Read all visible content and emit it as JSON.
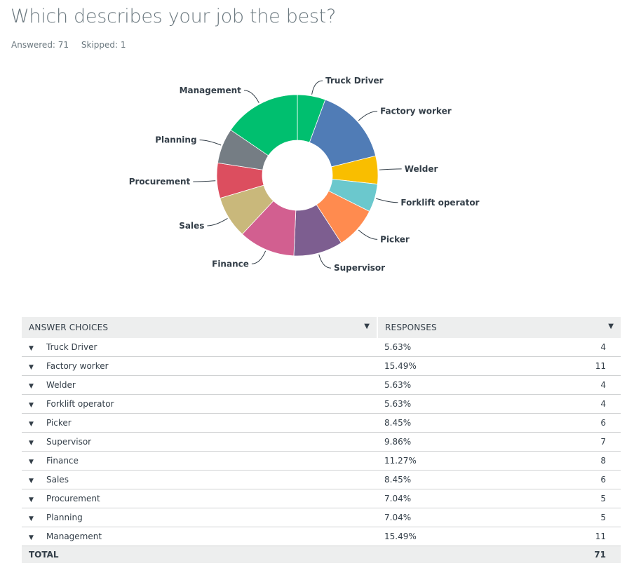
{
  "question": {
    "title": "Which describes your job the best?",
    "answered": "Answered: 71",
    "skipped": "Skipped: 1"
  },
  "colors": [
    "#00bf6f",
    "#507cb6",
    "#f9be00",
    "#6bc8cd",
    "#ff8b4f",
    "#7d5e90",
    "#d25f90",
    "#c9b87b",
    "#dc4e5f",
    "#757d84"
  ],
  "chart_data": {
    "type": "pie",
    "donut": true,
    "labels": [
      "Truck Driver",
      "Factory worker",
      "Welder",
      "Forklift operator",
      "Picker",
      "Supervisor",
      "Finance",
      "Sales",
      "Procurement",
      "Planning",
      "Management"
    ],
    "values": [
      5.63,
      15.49,
      5.63,
      5.63,
      8.45,
      9.86,
      11.27,
      8.45,
      7.04,
      7.04,
      15.49
    ],
    "counts": [
      4,
      11,
      4,
      4,
      6,
      7,
      8,
      6,
      5,
      5,
      11
    ],
    "slice_colors": [
      "#00bf6f",
      "#507cb6",
      "#f9be00",
      "#6bc8cd",
      "#ff8b4f",
      "#7d5e90",
      "#d25f90",
      "#c9b87b",
      "#dc4e5f",
      "#757d84",
      "#00bf6f"
    ]
  },
  "table": {
    "headers": {
      "choices": "Answer Choices",
      "responses": "Responses"
    },
    "rows": [
      {
        "choice": "Truck Driver",
        "percent": "5.63%",
        "count": "4"
      },
      {
        "choice": "Factory worker",
        "percent": "15.49%",
        "count": "11"
      },
      {
        "choice": "Welder",
        "percent": "5.63%",
        "count": "4"
      },
      {
        "choice": "Forklift operator",
        "percent": "5.63%",
        "count": "4"
      },
      {
        "choice": "Picker",
        "percent": "8.45%",
        "count": "6"
      },
      {
        "choice": "Supervisor",
        "percent": "9.86%",
        "count": "7"
      },
      {
        "choice": "Finance",
        "percent": "11.27%",
        "count": "8"
      },
      {
        "choice": "Sales",
        "percent": "8.45%",
        "count": "6"
      },
      {
        "choice": "Procurement",
        "percent": "7.04%",
        "count": "5"
      },
      {
        "choice": "Planning",
        "percent": "7.04%",
        "count": "5"
      },
      {
        "choice": "Management",
        "percent": "15.49%",
        "count": "11"
      }
    ],
    "total_label": "TOTAL",
    "total_count": "71"
  }
}
